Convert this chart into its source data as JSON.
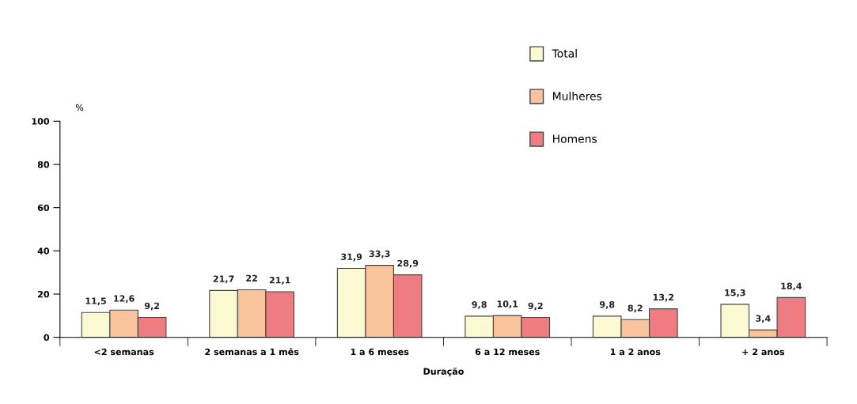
{
  "chart_data": {
    "type": "bar",
    "xlabel": "Duração",
    "ylabel": "%",
    "categories": [
      "<2 semanas",
      "2 semanas a 1 mês",
      "1 a 6 meses",
      "6 a 12 meses",
      "1 a 2 anos",
      "+ 2 anos"
    ],
    "series": [
      {
        "name": "Total",
        "color": "#fbf9d2",
        "values": [
          11.5,
          21.7,
          31.9,
          9.8,
          9.8,
          15.3
        ],
        "value_labels": [
          "11,5",
          "21,7",
          "31,9",
          "9,8",
          "9,8",
          "15,3"
        ]
      },
      {
        "name": "Mulheres",
        "color": "#f9c39b",
        "values": [
          12.6,
          22,
          33.3,
          10.1,
          8.2,
          3.4
        ],
        "value_labels": [
          "12,6",
          "22",
          "33,3",
          "10,1",
          "8,2",
          "3,4"
        ]
      },
      {
        "name": "Homens",
        "color": "#ee7c80",
        "values": [
          9.2,
          21.1,
          28.9,
          9.2,
          13.2,
          18.4
        ],
        "value_labels": [
          "9,2",
          "21,1",
          "28,9",
          "9,2",
          "13,2",
          "18,4"
        ]
      }
    ],
    "ylim": [
      0,
      100
    ],
    "yticks": [
      0,
      20,
      40,
      60,
      80,
      100
    ],
    "grid": false,
    "legend": "top right"
  }
}
